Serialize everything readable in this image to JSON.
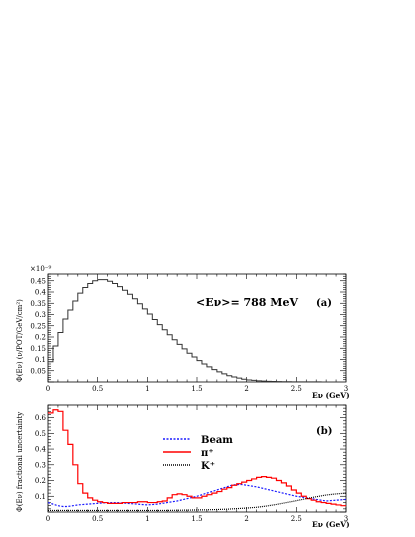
{
  "chart_data": [
    {
      "type": "line",
      "panel_label": "(a)",
      "annotation": "<Eν>= 788 MeV",
      "xlabel": "Eν (GeV)",
      "ylabel": "Φ(Eν) (ν/POT/GeV/cm²)",
      "y_exponent": "×10⁻⁹",
      "xlim": [
        0,
        3
      ],
      "ylim": [
        0,
        0.48
      ],
      "x_ticks": [
        "0",
        "0.5",
        "1",
        "1.5",
        "2",
        "2.5",
        "3"
      ],
      "y_ticks": [
        "0.05",
        "0.1",
        "0.15",
        "0.2",
        "0.25",
        "0.3",
        "0.35",
        "0.4",
        "0.45"
      ],
      "series": [
        {
          "style": "histogram",
          "color": "#333333",
          "bin_width": 0.05,
          "values": [
            0.09,
            0.16,
            0.22,
            0.28,
            0.32,
            0.36,
            0.395,
            0.42,
            0.438,
            0.45,
            0.455,
            0.455,
            0.448,
            0.438,
            0.424,
            0.408,
            0.39,
            0.37,
            0.348,
            0.325,
            0.302,
            0.278,
            0.255,
            0.232,
            0.21,
            0.188,
            0.167,
            0.147,
            0.128,
            0.111,
            0.095,
            0.08,
            0.067,
            0.055,
            0.045,
            0.036,
            0.028,
            0.022,
            0.017,
            0.012,
            0.009,
            0.007,
            0.005,
            0.004,
            0.003,
            0.002,
            0.0015,
            0.001,
            0.001,
            0.0008,
            0.0006,
            0.0005,
            0.0004,
            0.0003,
            0.0003,
            0.0002,
            0.0002,
            0.0001,
            0.0001,
            0.0001
          ]
        }
      ]
    },
    {
      "type": "line",
      "panel_label": "(b)",
      "xlabel": "Eν (GeV)",
      "ylabel": "Φ(Eν) fractional uncertainty",
      "xlim": [
        0,
        3
      ],
      "ylim": [
        0,
        0.68
      ],
      "x_ticks": [
        "0",
        "0.5",
        "1",
        "1.5",
        "2",
        "2.5",
        "3"
      ],
      "y_ticks": [
        "0.1",
        "0.2",
        "0.3",
        "0.4",
        "0.5",
        "0.6"
      ],
      "legend_position": "upper-right",
      "series": [
        {
          "name": "Beam",
          "color": "#1a1aff",
          "dash": "dotted-blue",
          "x": [
            0.0,
            0.05,
            0.1,
            0.15,
            0.2,
            0.25,
            0.3,
            0.4,
            0.5,
            0.6,
            0.7,
            0.8,
            0.9,
            1.0,
            1.1,
            1.2,
            1.3,
            1.4,
            1.5,
            1.6,
            1.7,
            1.8,
            1.85,
            1.9,
            1.95,
            2.0,
            2.05,
            2.1,
            2.2,
            2.3,
            2.4,
            2.5,
            2.6,
            2.7,
            2.8,
            2.9,
            3.0
          ],
          "y": [
            0.06,
            0.05,
            0.04,
            0.035,
            0.035,
            0.04,
            0.045,
            0.05,
            0.055,
            0.06,
            0.06,
            0.055,
            0.05,
            0.045,
            0.05,
            0.06,
            0.07,
            0.085,
            0.1,
            0.12,
            0.14,
            0.16,
            0.17,
            0.175,
            0.175,
            0.17,
            0.165,
            0.16,
            0.145,
            0.13,
            0.115,
            0.1,
            0.09,
            0.08,
            0.07,
            0.075,
            0.08
          ]
        },
        {
          "name": "π⁺",
          "color": "#ff0000",
          "dash": "solid",
          "bin_width": 0.05,
          "values": [
            0.63,
            0.65,
            0.64,
            0.52,
            0.43,
            0.3,
            0.18,
            0.12,
            0.09,
            0.075,
            0.065,
            0.06,
            0.055,
            0.055,
            0.055,
            0.06,
            0.06,
            0.06,
            0.065,
            0.065,
            0.06,
            0.06,
            0.065,
            0.07,
            0.09,
            0.11,
            0.115,
            0.11,
            0.1,
            0.09,
            0.09,
            0.1,
            0.11,
            0.12,
            0.13,
            0.145,
            0.155,
            0.17,
            0.18,
            0.19,
            0.2,
            0.21,
            0.22,
            0.225,
            0.22,
            0.215,
            0.2,
            0.185,
            0.165,
            0.14,
            0.12,
            0.1,
            0.085,
            0.075,
            0.065,
            0.06,
            0.055,
            0.05,
            0.045,
            0.04
          ]
        },
        {
          "name": "K⁺",
          "color": "#000000",
          "dash": "dotted-black",
          "x": [
            0.0,
            0.2,
            0.4,
            0.6,
            0.8,
            1.0,
            1.2,
            1.4,
            1.6,
            1.8,
            2.0,
            2.1,
            2.2,
            2.3,
            2.4,
            2.5,
            2.6,
            2.7,
            2.8,
            2.9,
            3.0
          ],
          "y": [
            0.01,
            0.01,
            0.01,
            0.01,
            0.01,
            0.01,
            0.01,
            0.012,
            0.014,
            0.018,
            0.025,
            0.03,
            0.038,
            0.048,
            0.06,
            0.072,
            0.085,
            0.097,
            0.108,
            0.115,
            0.12
          ]
        }
      ]
    }
  ]
}
